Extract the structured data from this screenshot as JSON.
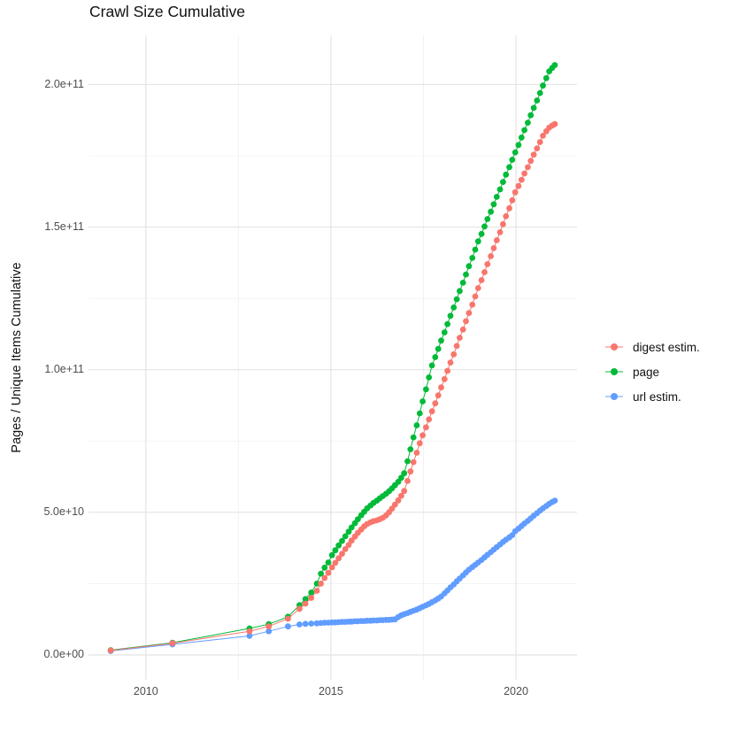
{
  "chart_data": {
    "type": "line",
    "title": "Crawl Size Cumulative",
    "xlabel": "",
    "ylabel": "Pages / Unique Items Cumulative",
    "value_unit": "items (values stored as billions, 1 = 1e9)",
    "xlim": [
      2008.45,
      2021.65
    ],
    "ylim": [
      -8.7,
      217.2
    ],
    "grid": true,
    "legend_position": "right",
    "x_ticks": [
      {
        "label": "2010",
        "value": 2010
      },
      {
        "label": "2015",
        "value": 2015
      },
      {
        "label": "2020",
        "value": 2020
      }
    ],
    "y_ticks": [
      {
        "label": "0.0e+00",
        "value": 0
      },
      {
        "label": "5.0e+10",
        "value": 50
      },
      {
        "label": "1.0e+11",
        "value": 100
      },
      {
        "label": "1.5e+11",
        "value": 150
      },
      {
        "label": "2.0e+11",
        "value": 200
      }
    ],
    "x_minor": [
      2012.5,
      2017.5
    ],
    "y_minor": [
      25,
      75,
      125,
      175
    ],
    "colors": {
      "digest": "#F8766D",
      "page": "#00BA38",
      "url": "#619CFF"
    },
    "series": [
      {
        "name": "digest estim.",
        "color": "#F8766D",
        "points": [
          [
            2009.05,
            1.6
          ],
          [
            2010.72,
            4.1
          ],
          [
            2012.8,
            8.3
          ],
          [
            2013.32,
            10.0
          ],
          [
            2013.84,
            12.7
          ],
          [
            2014.15,
            16.2
          ],
          [
            2014.31,
            18.0
          ],
          [
            2014.47,
            20.0
          ],
          [
            2014.62,
            22.5
          ],
          [
            2014.73,
            25.0
          ],
          [
            2014.83,
            27.0
          ],
          [
            2014.93,
            28.8
          ],
          [
            2015.03,
            30.7
          ],
          [
            2015.12,
            32.3
          ],
          [
            2015.21,
            33.9
          ],
          [
            2015.3,
            35.5
          ],
          [
            2015.39,
            37.1
          ],
          [
            2015.48,
            38.6
          ],
          [
            2015.56,
            40.1
          ],
          [
            2015.65,
            41.5
          ],
          [
            2015.73,
            42.8
          ],
          [
            2015.82,
            44.0
          ],
          [
            2015.9,
            45.1
          ],
          [
            2015.98,
            45.9
          ],
          [
            2016.07,
            46.5
          ],
          [
            2016.15,
            46.9
          ],
          [
            2016.24,
            47.2
          ],
          [
            2016.32,
            47.6
          ],
          [
            2016.4,
            48.1
          ],
          [
            2016.49,
            48.9
          ],
          [
            2016.57,
            50.0
          ],
          [
            2016.65,
            51.3
          ],
          [
            2016.73,
            52.7
          ],
          [
            2016.82,
            54.2
          ],
          [
            2016.9,
            55.8
          ],
          [
            2016.98,
            57.5
          ],
          [
            2017.07,
            61.0
          ],
          [
            2017.15,
            64.3
          ],
          [
            2017.23,
            67.6
          ],
          [
            2017.32,
            70.9
          ],
          [
            2017.4,
            74.2
          ],
          [
            2017.48,
            77.0
          ],
          [
            2017.57,
            79.8
          ],
          [
            2017.65,
            82.6
          ],
          [
            2017.73,
            85.4
          ],
          [
            2017.82,
            88.2
          ],
          [
            2017.9,
            91.0
          ],
          [
            2017.98,
            93.8
          ],
          [
            2018.07,
            96.7
          ],
          [
            2018.15,
            99.6
          ],
          [
            2018.23,
            102.5
          ],
          [
            2018.32,
            105.4
          ],
          [
            2018.4,
            108.3
          ],
          [
            2018.48,
            111.2
          ],
          [
            2018.57,
            114.1
          ],
          [
            2018.65,
            117.0
          ],
          [
            2018.73,
            119.9
          ],
          [
            2018.82,
            122.8
          ],
          [
            2018.9,
            125.7
          ],
          [
            2018.98,
            128.6
          ],
          [
            2019.07,
            131.4
          ],
          [
            2019.15,
            134.2
          ],
          [
            2019.23,
            137.0
          ],
          [
            2019.32,
            139.8
          ],
          [
            2019.4,
            142.6
          ],
          [
            2019.48,
            145.4
          ],
          [
            2019.57,
            148.2
          ],
          [
            2019.65,
            151.0
          ],
          [
            2019.73,
            153.8
          ],
          [
            2019.82,
            156.6
          ],
          [
            2019.9,
            159.4
          ],
          [
            2019.98,
            162.2
          ],
          [
            2020.07,
            164.4
          ],
          [
            2020.15,
            166.6
          ],
          [
            2020.23,
            168.8
          ],
          [
            2020.32,
            171.0
          ],
          [
            2020.4,
            173.2
          ],
          [
            2020.48,
            175.4
          ],
          [
            2020.57,
            177.6
          ],
          [
            2020.65,
            179.8
          ],
          [
            2020.73,
            182.0
          ],
          [
            2020.82,
            183.6
          ],
          [
            2020.9,
            184.9
          ],
          [
            2020.98,
            185.6
          ],
          [
            2021.05,
            186.1
          ]
        ]
      },
      {
        "name": "page",
        "color": "#00BA38",
        "points": [
          [
            2009.05,
            1.7
          ],
          [
            2010.72,
            4.3
          ],
          [
            2012.8,
            9.3
          ],
          [
            2013.32,
            10.8
          ],
          [
            2013.84,
            13.4
          ],
          [
            2014.15,
            17.5
          ],
          [
            2014.31,
            19.6
          ],
          [
            2014.47,
            21.9
          ],
          [
            2014.62,
            25.0
          ],
          [
            2014.73,
            28.5
          ],
          [
            2014.83,
            30.6
          ],
          [
            2014.93,
            32.4
          ],
          [
            2015.03,
            35.0
          ],
          [
            2015.12,
            36.7
          ],
          [
            2015.21,
            38.4
          ],
          [
            2015.3,
            40.0
          ],
          [
            2015.39,
            41.6
          ],
          [
            2015.48,
            43.2
          ],
          [
            2015.56,
            44.7
          ],
          [
            2015.65,
            46.2
          ],
          [
            2015.73,
            47.6
          ],
          [
            2015.82,
            49.0
          ],
          [
            2015.9,
            50.2
          ],
          [
            2015.98,
            51.4
          ],
          [
            2016.07,
            52.4
          ],
          [
            2016.15,
            53.3
          ],
          [
            2016.24,
            54.1
          ],
          [
            2016.32,
            54.9
          ],
          [
            2016.4,
            55.7
          ],
          [
            2016.49,
            56.5
          ],
          [
            2016.57,
            57.4
          ],
          [
            2016.65,
            58.4
          ],
          [
            2016.73,
            59.5
          ],
          [
            2016.82,
            60.7
          ],
          [
            2016.9,
            62.1
          ],
          [
            2016.98,
            63.7
          ],
          [
            2017.07,
            67.9
          ],
          [
            2017.15,
            72.1
          ],
          [
            2017.23,
            76.3
          ],
          [
            2017.32,
            80.5
          ],
          [
            2017.4,
            84.7
          ],
          [
            2017.48,
            88.9
          ],
          [
            2017.57,
            93.1
          ],
          [
            2017.65,
            97.3
          ],
          [
            2017.73,
            101.5
          ],
          [
            2017.82,
            104.4
          ],
          [
            2017.9,
            107.3
          ],
          [
            2017.98,
            110.2
          ],
          [
            2018.07,
            113.1
          ],
          [
            2018.15,
            116.0
          ],
          [
            2018.23,
            118.9
          ],
          [
            2018.32,
            121.8
          ],
          [
            2018.4,
            124.7
          ],
          [
            2018.48,
            127.6
          ],
          [
            2018.57,
            130.5
          ],
          [
            2018.65,
            133.4
          ],
          [
            2018.73,
            136.3
          ],
          [
            2018.82,
            139.2
          ],
          [
            2018.9,
            142.1
          ],
          [
            2018.98,
            145.0
          ],
          [
            2019.07,
            147.6
          ],
          [
            2019.15,
            150.2
          ],
          [
            2019.23,
            152.8
          ],
          [
            2019.32,
            155.4
          ],
          [
            2019.4,
            158.0
          ],
          [
            2019.48,
            160.6
          ],
          [
            2019.57,
            163.2
          ],
          [
            2019.65,
            165.8
          ],
          [
            2019.73,
            168.4
          ],
          [
            2019.82,
            171.0
          ],
          [
            2019.9,
            173.6
          ],
          [
            2019.98,
            176.2
          ],
          [
            2020.07,
            178.8
          ],
          [
            2020.15,
            181.4
          ],
          [
            2020.23,
            184.0
          ],
          [
            2020.32,
            186.6
          ],
          [
            2020.4,
            189.2
          ],
          [
            2020.48,
            191.8
          ],
          [
            2020.57,
            194.4
          ],
          [
            2020.65,
            197.0
          ],
          [
            2020.73,
            199.6
          ],
          [
            2020.82,
            202.2
          ],
          [
            2020.9,
            204.6
          ],
          [
            2020.98,
            205.8
          ],
          [
            2021.05,
            206.8
          ]
        ]
      },
      {
        "name": "url estim.",
        "color": "#619CFF",
        "points": [
          [
            2009.05,
            1.4
          ],
          [
            2010.72,
            3.7
          ],
          [
            2012.8,
            6.7
          ],
          [
            2013.32,
            8.3
          ],
          [
            2013.84,
            10.0
          ],
          [
            2014.15,
            10.7
          ],
          [
            2014.31,
            10.9
          ],
          [
            2014.47,
            11.0
          ],
          [
            2014.62,
            11.1
          ],
          [
            2014.73,
            11.2
          ],
          [
            2014.83,
            11.3
          ],
          [
            2014.93,
            11.3
          ],
          [
            2015.03,
            11.4
          ],
          [
            2015.12,
            11.4
          ],
          [
            2015.21,
            11.5
          ],
          [
            2015.3,
            11.6
          ],
          [
            2015.39,
            11.6
          ],
          [
            2015.48,
            11.7
          ],
          [
            2015.56,
            11.7
          ],
          [
            2015.65,
            11.8
          ],
          [
            2015.73,
            11.8
          ],
          [
            2015.82,
            11.9
          ],
          [
            2015.9,
            11.9
          ],
          [
            2015.98,
            12.0
          ],
          [
            2016.07,
            12.0
          ],
          [
            2016.15,
            12.1
          ],
          [
            2016.24,
            12.1
          ],
          [
            2016.32,
            12.2
          ],
          [
            2016.4,
            12.2
          ],
          [
            2016.49,
            12.3
          ],
          [
            2016.57,
            12.3
          ],
          [
            2016.65,
            12.4
          ],
          [
            2016.73,
            12.5
          ],
          [
            2016.82,
            13.3
          ],
          [
            2016.9,
            13.9
          ],
          [
            2016.98,
            14.3
          ],
          [
            2017.07,
            14.7
          ],
          [
            2017.15,
            15.1
          ],
          [
            2017.23,
            15.5
          ],
          [
            2017.32,
            15.9
          ],
          [
            2017.4,
            16.4
          ],
          [
            2017.48,
            16.9
          ],
          [
            2017.57,
            17.4
          ],
          [
            2017.65,
            17.9
          ],
          [
            2017.73,
            18.5
          ],
          [
            2017.82,
            19.1
          ],
          [
            2017.9,
            19.8
          ],
          [
            2017.98,
            20.5
          ],
          [
            2018.07,
            21.6
          ],
          [
            2018.15,
            22.6
          ],
          [
            2018.23,
            23.7
          ],
          [
            2018.32,
            24.7
          ],
          [
            2018.4,
            25.8
          ],
          [
            2018.48,
            26.8
          ],
          [
            2018.57,
            27.9
          ],
          [
            2018.65,
            28.9
          ],
          [
            2018.73,
            29.9
          ],
          [
            2018.82,
            30.8
          ],
          [
            2018.9,
            31.6
          ],
          [
            2018.98,
            32.4
          ],
          [
            2019.07,
            33.3
          ],
          [
            2019.15,
            34.2
          ],
          [
            2019.23,
            35.1
          ],
          [
            2019.32,
            36.0
          ],
          [
            2019.4,
            36.9
          ],
          [
            2019.48,
            37.8
          ],
          [
            2019.57,
            38.7
          ],
          [
            2019.65,
            39.6
          ],
          [
            2019.73,
            40.4
          ],
          [
            2019.82,
            41.2
          ],
          [
            2019.9,
            42.0
          ],
          [
            2019.98,
            43.4
          ],
          [
            2020.07,
            44.3
          ],
          [
            2020.15,
            45.2
          ],
          [
            2020.23,
            46.1
          ],
          [
            2020.32,
            47.0
          ],
          [
            2020.4,
            47.9
          ],
          [
            2020.48,
            48.8
          ],
          [
            2020.57,
            49.7
          ],
          [
            2020.65,
            50.6
          ],
          [
            2020.73,
            51.4
          ],
          [
            2020.82,
            52.2
          ],
          [
            2020.9,
            53.0
          ],
          [
            2020.98,
            53.6
          ],
          [
            2021.05,
            54.1
          ]
        ]
      }
    ],
    "draw_order": [
      2,
      1,
      0
    ]
  }
}
